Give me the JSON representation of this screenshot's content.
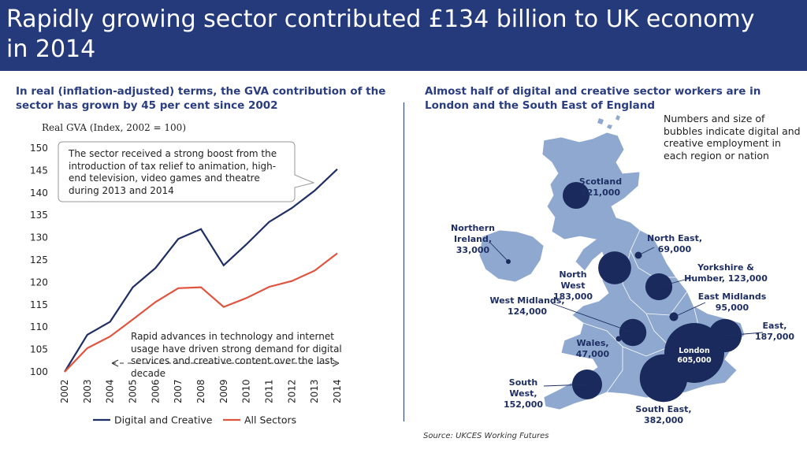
{
  "title": "Rapidly growing sector contributed £134 billion to UK economy in 2014",
  "left_subtitle": "In real (inflation-adjusted) terms, the GVA contribution of the sector has grown by 45 per cent since 2002",
  "right_subtitle": "Almost half of digital and creative sector workers are in London and the South East of England",
  "callout_boost": "The sector received a strong boost from the introduction of tax relief to animation, high-end television, video games and theatre during 2013 and 2014",
  "callout_advances": "Rapid advances in technology and internet usage have driven strong demand for digital services and creative content over the last decade",
  "bubble_note": "Numbers and size of bubbles indicate digital and creative employment in each region or nation",
  "source": "Source: UKCES Working Futures",
  "colors": {
    "banner": "#243a7a",
    "digital": "#1f2f63",
    "all": "#e0533e",
    "map_fill": "#8fa8cf",
    "bubble": "#1b2a5c"
  },
  "chart_data": [
    {
      "type": "line",
      "ylabel": "Real GVA (Index, 2002 = 100)",
      "x": [
        "2002",
        "2003",
        "2004",
        "2005",
        "2006",
        "2007",
        "2008",
        "2009",
        "2010",
        "2011",
        "2012",
        "2013",
        "2014"
      ],
      "ylim": [
        100,
        150
      ],
      "yticks": [
        "100",
        "105",
        "110",
        "115",
        "120",
        "125",
        "130",
        "135",
        "140",
        "145",
        "150"
      ],
      "grid": false,
      "legend_position": "bottom",
      "series": [
        {
          "name": "Digital and Creative",
          "values": [
            100,
            108.3,
            111.2,
            118.9,
            123.2,
            129.7,
            131.9,
            123.8,
            128.5,
            133.5,
            136.6,
            140.5,
            145.3
          ]
        },
        {
          "name": "All Sectors",
          "values": [
            100,
            105.3,
            107.9,
            111.7,
            115.6,
            118.7,
            118.9,
            114.5,
            116.5,
            119.0,
            120.3,
            122.6,
            126.5
          ]
        }
      ]
    },
    {
      "type": "scatter",
      "regions": [
        {
          "name": "Scotland",
          "value": "121,000",
          "employment": 121000
        },
        {
          "name": "Northern Ireland",
          "value": "33,000",
          "employment": 33000
        },
        {
          "name": "North East",
          "value": "69,000",
          "employment": 69000
        },
        {
          "name": "North West",
          "value": "183,000",
          "employment": 183000
        },
        {
          "name": "Yorkshire & Humber",
          "value": "123,000",
          "employment": 123000
        },
        {
          "name": "East Midlands",
          "value": "95,000",
          "employment": 95000
        },
        {
          "name": "West Midlands",
          "value": "124,000",
          "employment": 124000
        },
        {
          "name": "East",
          "value": "187,000",
          "employment": 187000
        },
        {
          "name": "Wales",
          "value": "47,000",
          "employment": 47000
        },
        {
          "name": "London",
          "value": "605,000",
          "employment": 605000
        },
        {
          "name": "South West",
          "value": "152,000",
          "employment": 152000
        },
        {
          "name": "South East",
          "value": "382,000",
          "employment": 382000
        }
      ]
    }
  ]
}
